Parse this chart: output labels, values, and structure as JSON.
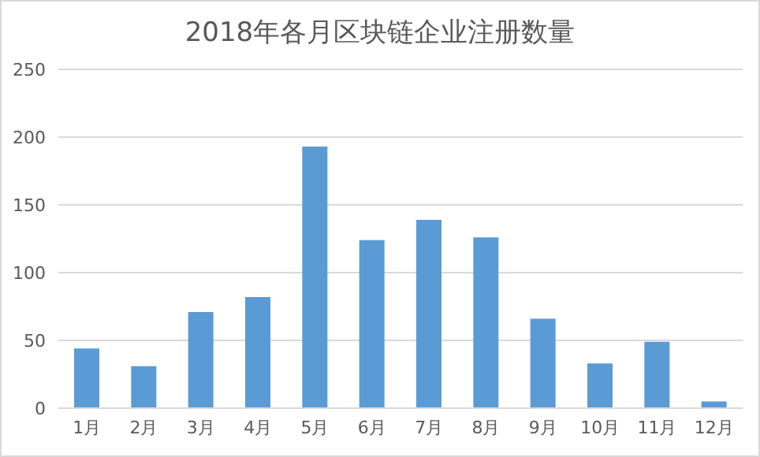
{
  "chart_data": {
    "type": "bar",
    "title": "2018年各月区块链企业注册数量",
    "categories": [
      "1月",
      "2月",
      "3月",
      "4月",
      "5月",
      "6月",
      "7月",
      "8月",
      "9月",
      "10月",
      "11月",
      "12月"
    ],
    "values": [
      44,
      31,
      71,
      82,
      193,
      124,
      139,
      126,
      66,
      33,
      49,
      5
    ],
    "color": "#5b9bd5",
    "ylim": [
      0,
      250
    ],
    "yticks": [
      0,
      50,
      100,
      150,
      200,
      250
    ],
    "grid": "y"
  }
}
